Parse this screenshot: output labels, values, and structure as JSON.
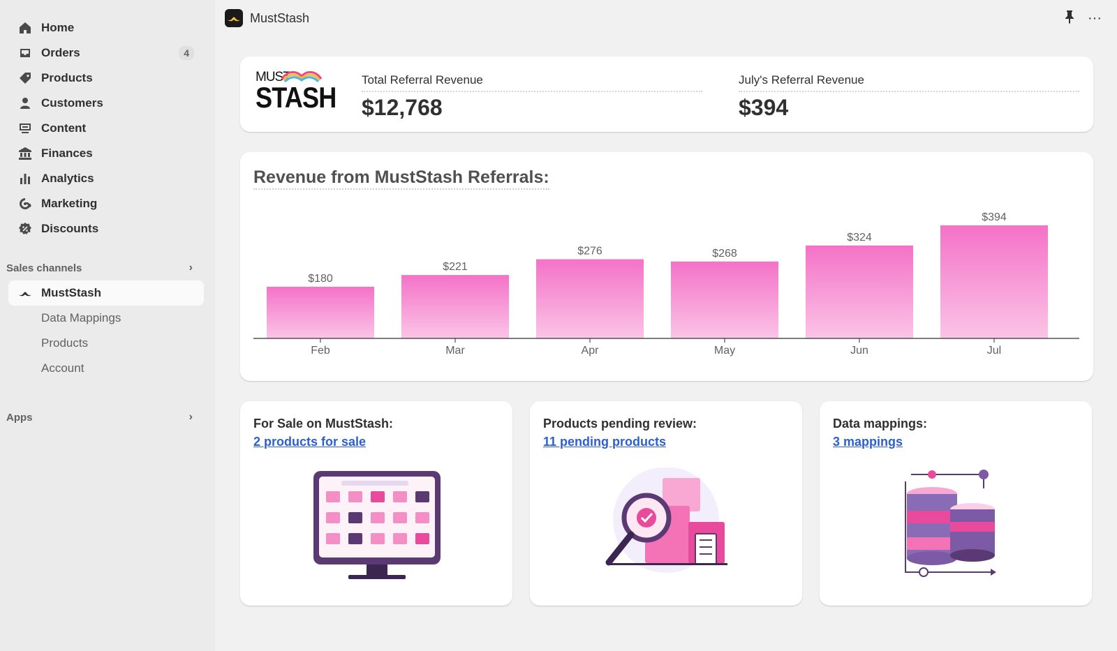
{
  "sidebar": {
    "items": [
      {
        "label": "Home",
        "icon": "home-icon"
      },
      {
        "label": "Orders",
        "icon": "inbox-icon",
        "badge": "4"
      },
      {
        "label": "Products",
        "icon": "tag-icon"
      },
      {
        "label": "Customers",
        "icon": "person-icon"
      },
      {
        "label": "Content",
        "icon": "content-icon"
      },
      {
        "label": "Finances",
        "icon": "bank-icon"
      },
      {
        "label": "Analytics",
        "icon": "bar-chart-icon"
      },
      {
        "label": "Marketing",
        "icon": "target-icon"
      },
      {
        "label": "Discounts",
        "icon": "discount-icon"
      }
    ],
    "sales_channels_label": "Sales channels",
    "active_channel": "MustStash",
    "channel_subitems": [
      "Data Mappings",
      "Products",
      "Account"
    ],
    "apps_label": "Apps"
  },
  "topbar": {
    "title": "MustStash",
    "pin_icon": "pin-icon",
    "more_icon": "more-icon"
  },
  "stats": {
    "brand_top": "MUST",
    "brand_bottom": "STASH",
    "total_label": "Total Referral Revenue",
    "total_value": "$12,768",
    "month_label": "July's Referral Revenue",
    "month_value": "$394"
  },
  "chart_data": {
    "type": "bar",
    "title": "Revenue from MustStash Referrals:",
    "categories": [
      "Feb",
      "Mar",
      "Apr",
      "May",
      "Jun",
      "Jul"
    ],
    "values": [
      180,
      221,
      276,
      268,
      324,
      394
    ],
    "value_labels": [
      "$180",
      "$221",
      "$276",
      "$268",
      "$324",
      "$394"
    ],
    "ylim": [
      0,
      394
    ],
    "grid": false,
    "bar_color_top": "#f472c8",
    "bar_color_bottom": "#fbc4e6"
  },
  "tiles": [
    {
      "title": "For Sale on MustStash:",
      "link": "2 products for sale"
    },
    {
      "title": "Products pending review:",
      "link": "11 pending products"
    },
    {
      "title": "Data mappings:",
      "link": "3 mappings"
    }
  ]
}
